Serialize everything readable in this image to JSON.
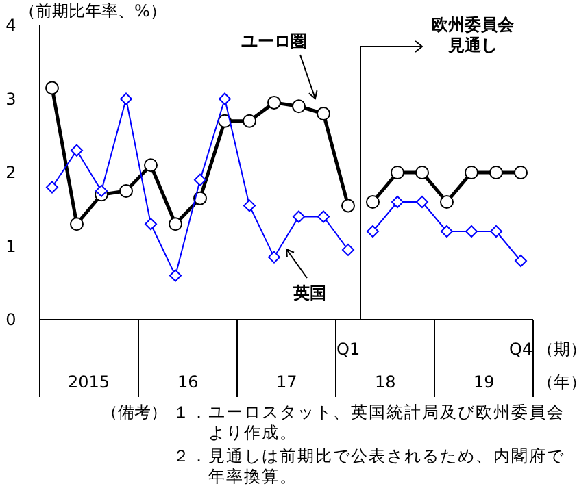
{
  "chart_data": {
    "type": "line",
    "title": "（前期比年率、%）",
    "xlabel": "（期）",
    "categories": [
      null,
      null,
      null,
      null,
      null,
      null,
      null,
      null,
      null,
      null,
      null,
      null,
      "Q1",
      null,
      null,
      null,
      null,
      null,
      null,
      "Q4"
    ],
    "series": [
      {
        "name": "ユーロ圏",
        "color": "#000000",
        "marker": "circle",
        "values": [
          3.15,
          1.3,
          1.7,
          1.75,
          2.1,
          1.3,
          1.65,
          2.7,
          2.7,
          2.95,
          2.9,
          2.8,
          1.55,
          null,
          null,
          null,
          null,
          null,
          null,
          null
        ]
      },
      {
        "color": "#000000",
        "marker": "circle",
        "values": [
          null,
          null,
          null,
          null,
          null,
          null,
          null,
          null,
          null,
          null,
          null,
          null,
          null,
          1.6,
          2.0,
          2.0,
          1.6,
          2.0,
          2.0,
          2.0
        ]
      },
      {
        "color": "#0000ff",
        "marker": "diamond",
        "values": [
          1.8,
          2.3,
          1.75,
          3.0,
          1.3,
          0.6,
          1.9,
          3.0,
          1.55,
          0.85,
          1.4,
          1.4,
          0.95,
          null,
          null,
          null,
          null,
          null,
          null,
          null
        ]
      },
      {
        "color": "#0000ff",
        "marker": "diamond",
        "values": [
          null,
          null,
          null,
          null,
          null,
          null,
          null,
          null,
          null,
          null,
          null,
          null,
          null,
          1.2,
          1.6,
          1.6,
          1.2,
          1.2,
          1.2,
          0.8
        ]
      }
    ],
    "ylim": [
      0,
      4
    ],
    "yticks": [
      0,
      1,
      2,
      3,
      4
    ],
    "grid": false,
    "legend": false,
    "annotations": [
      "2015",
      "16",
      "17",
      "18",
      "19",
      "（年）",
      "（備考）",
      "１．ユーロスタット、英国統計局及び欧州委員会より作成。",
      "２．見通しは前期比で公表されるため、内閣府で年率換算。",
      "英国",
      "欧州委員会見通し"
    ]
  }
}
